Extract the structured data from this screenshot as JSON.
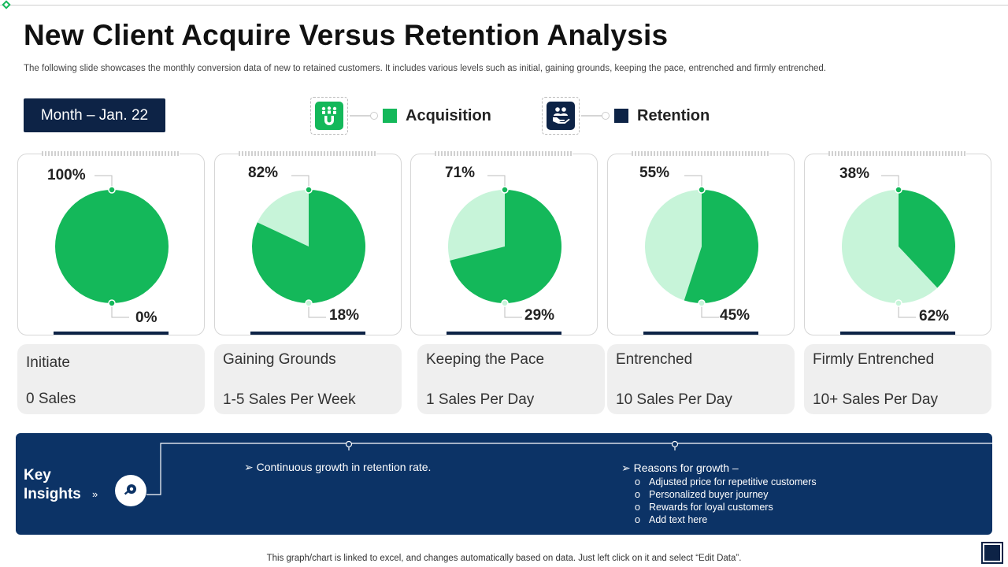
{
  "title": "New Client Acquire Versus Retention Analysis",
  "subtitle": "The following slide showcases the monthly conversion data of new to retained customers. It includes various levels such as initial, gaining grounds, keeping the pace, entrenched and firmly entrenched.",
  "month_label": "Month – Jan. 22",
  "colors": {
    "acquisition": "#14b85a",
    "retention": "#c7f4d9",
    "navy": "#0d2346"
  },
  "legend": {
    "acquisition": {
      "label": "Acquisition",
      "icon": "magnet-people-icon",
      "color": "#14b85a"
    },
    "retention": {
      "label": "Retention",
      "icon": "handshake-people-icon",
      "color": "#0d2346"
    }
  },
  "chart_data": {
    "type": "pie",
    "series_names": [
      "Acquisition",
      "Retention"
    ],
    "categories": [
      "Initiate",
      "Gaining Grounds",
      "Keeping the Pace",
      "Entrenched",
      "Firmly Entrenched"
    ],
    "acquisition": [
      100,
      82,
      71,
      55,
      38
    ],
    "retention": [
      0,
      18,
      29,
      45,
      62
    ],
    "acquisition_labels": [
      "100%",
      "82%",
      "71%",
      "55%",
      "38%"
    ],
    "retention_labels": [
      "0%",
      "18%",
      "29%",
      "45%",
      "62%"
    ]
  },
  "stages": [
    {
      "name": "Initiate",
      "sales": "0 Sales"
    },
    {
      "name": "Gaining Grounds",
      "sales": "1-5 Sales Per Week"
    },
    {
      "name": "Keeping the Pace",
      "sales": "1 Sales Per Day"
    },
    {
      "name": "Entrenched",
      "sales": "10 Sales Per Day"
    },
    {
      "name": "Firmly Entrenched",
      "sales": "10+ Sales Per Day"
    }
  ],
  "insights": {
    "title_line1": "Key",
    "title_line2": "Insights",
    "arrow": "»",
    "icon": "key-insight-icon",
    "point1": "➢  Continuous growth in retention rate.",
    "point2": "➢  Reasons for growth –",
    "sub_marker": "o",
    "sub_points": [
      "Adjusted price for repetitive customers",
      "Personalized buyer journey",
      "Rewards for loyal customers",
      "Add text here"
    ]
  },
  "footnote": "This graph/chart is linked to excel,  and changes automatically based on data. Just left click on it and select “Edit Data”."
}
